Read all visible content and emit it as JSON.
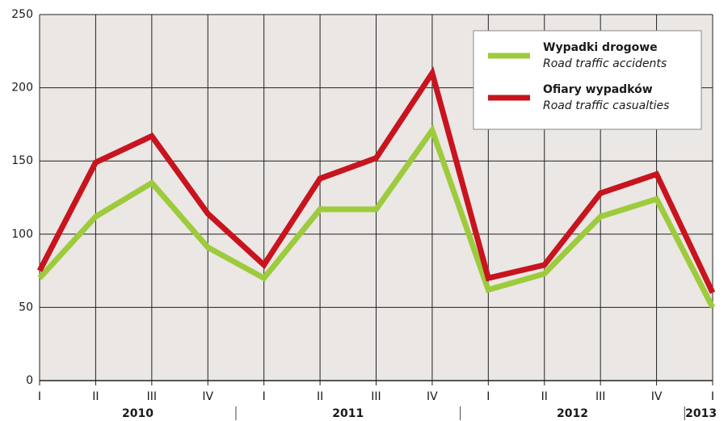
{
  "chart_data": {
    "type": "line",
    "categories": [
      "I",
      "II",
      "III",
      "IV",
      "I",
      "II",
      "III",
      "IV",
      "I",
      "II",
      "III",
      "IV",
      "I"
    ],
    "years": [
      "2010",
      "2011",
      "2012",
      "2013"
    ],
    "series": [
      {
        "name": "Wypadki drogowe",
        "subtitle": "Road traffic accidents",
        "color": "#9dcb3c",
        "values": [
          70,
          112,
          135,
          91,
          70,
          117,
          117,
          171,
          62,
          73,
          112,
          124,
          50
        ]
      },
      {
        "name": "Ofiary wypadków",
        "subtitle": "Road traffic casualties",
        "color": "#c8141e",
        "values": [
          75,
          149,
          167,
          114,
          79,
          138,
          152,
          210,
          70,
          79,
          128,
          141,
          60
        ]
      }
    ],
    "ylim": [
      0,
      250
    ],
    "yticks": [
      0,
      50,
      100,
      150,
      200,
      250
    ],
    "grid": true,
    "legend": "top-right"
  }
}
